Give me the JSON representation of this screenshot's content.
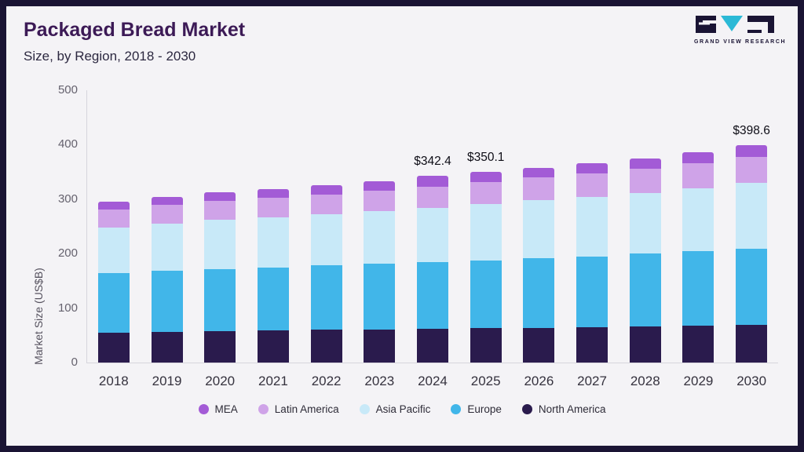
{
  "header": {
    "title": "Packaged Bread Market",
    "subtitle": "Size, by Region, 2018 - 2030"
  },
  "logo": {
    "text": "GRAND VIEW RESEARCH",
    "mark_color": "#1a1434",
    "accent_color": "#2bb9d6"
  },
  "chart_data": {
    "type": "bar",
    "stacked": true,
    "title": "Packaged Bread Market",
    "subtitle": "Size, by Region, 2018 - 2030",
    "ylabel": "Market Size (US$B)",
    "ylim": [
      0,
      500
    ],
    "yticks": [
      0,
      100,
      200,
      300,
      400,
      500
    ],
    "grid": false,
    "legend_position": "bottom",
    "categories": [
      "2018",
      "2019",
      "2020",
      "2021",
      "2022",
      "2023",
      "2024",
      "2025",
      "2026",
      "2027",
      "2028",
      "2029",
      "2030"
    ],
    "series": [
      {
        "key": "north-america",
        "name": "North America",
        "color": "#2a1b4d",
        "values": [
          55,
          56,
          58,
          59,
          60,
          61,
          62,
          63,
          64,
          65,
          66,
          68,
          69
        ]
      },
      {
        "key": "europe",
        "name": "Europe",
        "color": "#41b6e9",
        "values": [
          110,
          112,
          114,
          116,
          118,
          121,
          123,
          125,
          128,
          130,
          134,
          136,
          140
        ]
      },
      {
        "key": "asia-pacific",
        "name": "Asia Pacific",
        "color": "#c8e9f8",
        "values": [
          83,
          87,
          90,
          92,
          94,
          96,
          99,
          103,
          106,
          109,
          111,
          116,
          121
        ]
      },
      {
        "key": "latin-america",
        "name": "Latin America",
        "color": "#cfa3e8",
        "values": [
          33,
          34,
          35,
          36,
          37,
          38,
          39,
          40,
          42,
          44,
          45,
          46,
          48
        ]
      },
      {
        "key": "mea",
        "name": "MEA",
        "color": "#a35bd6",
        "values": [
          14,
          15,
          16,
          16,
          16,
          17,
          19.4,
          19.1,
          17,
          18,
          18,
          20,
          20.6
        ]
      }
    ],
    "annotations": [
      {
        "category": "2024",
        "text": "$342.4"
      },
      {
        "category": "2025",
        "text": "$350.1"
      },
      {
        "category": "2030",
        "text": "$398.6"
      }
    ],
    "legend": [
      {
        "label": "MEA",
        "color": "#a35bd6"
      },
      {
        "label": "Latin America",
        "color": "#cfa3e8"
      },
      {
        "label": "Asia Pacific",
        "color": "#c8e9f8"
      },
      {
        "label": "Europe",
        "color": "#41b6e9"
      },
      {
        "label": "North America",
        "color": "#2a1b4d"
      }
    ]
  }
}
